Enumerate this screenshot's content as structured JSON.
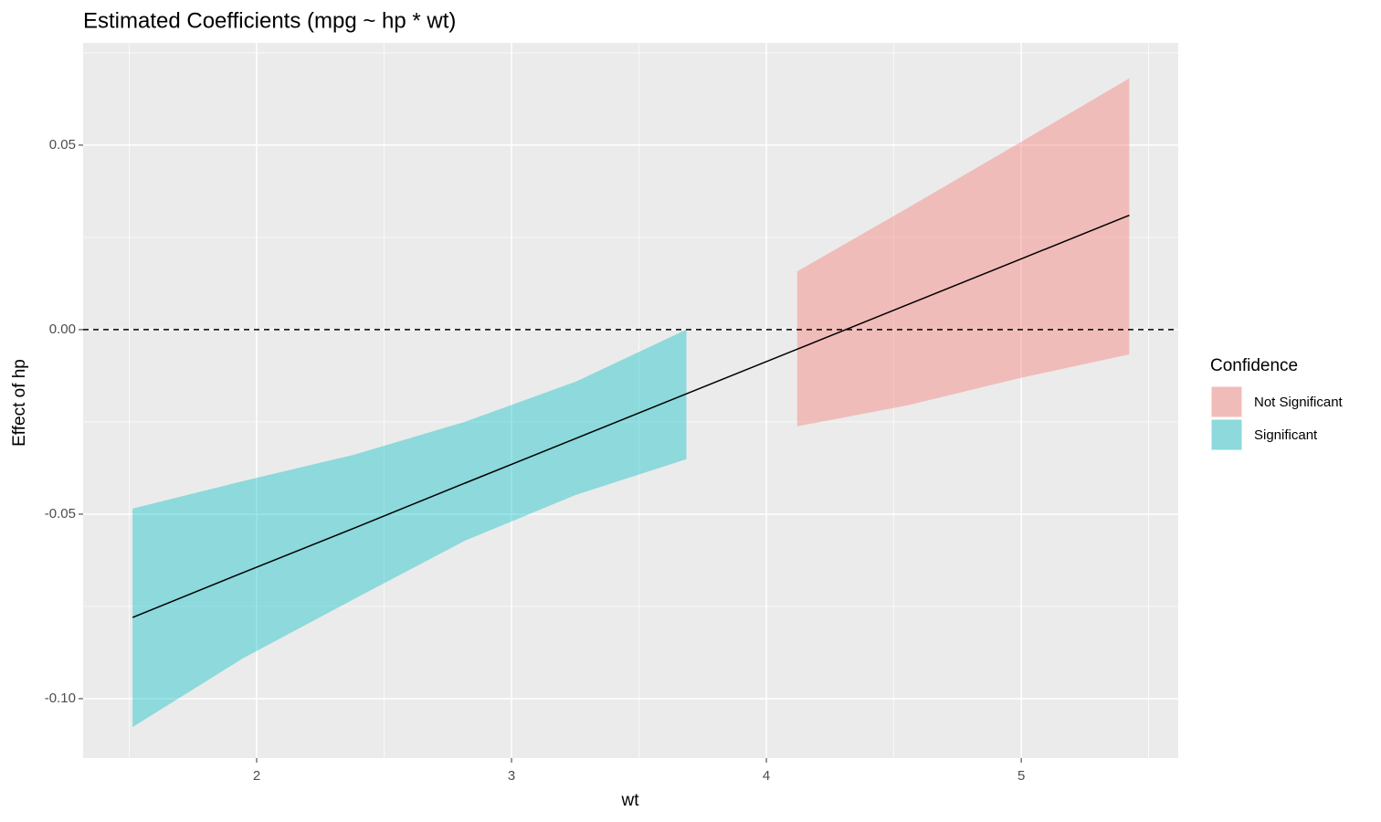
{
  "chart_data": {
    "type": "ribbon",
    "title": "Estimated Coefficients (mpg ~ hp * wt)",
    "x_label": "wt",
    "y_label": "Effect of hp",
    "x": [
      1.513,
      1.948,
      2.382,
      2.817,
      3.252,
      3.686,
      4.121,
      4.555,
      4.99,
      5.424
    ],
    "values": [
      -0.078,
      -0.0658,
      -0.0538,
      -0.0416,
      -0.0295,
      -0.0174,
      -0.0053,
      0.0068,
      0.0189,
      0.031
    ],
    "line_color": "#000000",
    "series": [
      {
        "name": "Not Significant",
        "color": "#F8766D",
        "lower": [
          null,
          null,
          null,
          null,
          null,
          null,
          -0.0262,
          -0.0205,
          -0.0132,
          -0.0067
        ],
        "upper": [
          null,
          null,
          null,
          null,
          null,
          null,
          0.0158,
          0.033,
          0.0505,
          0.0681
        ]
      },
      {
        "name": "Significant",
        "color": "#00BFC4",
        "lower": [
          -0.1077,
          -0.089,
          -0.073,
          -0.0572,
          -0.0448,
          -0.0351,
          null,
          null,
          null,
          null
        ],
        "upper": [
          -0.0485,
          -0.041,
          -0.0339,
          -0.025,
          -0.0141,
          0.0,
          null,
          null,
          null,
          null
        ]
      }
    ],
    "legend_title": "Confidence",
    "legend_position": "right",
    "fill_opacity": 0.4,
    "hline": 0,
    "xlim": [
      1.319,
      5.616
    ],
    "ylim": [
      -0.1161,
      0.0777
    ],
    "xticks": [
      2,
      3,
      4,
      5
    ],
    "yticks": [
      {
        "value": 0.05,
        "label": "0.05"
      },
      {
        "value": 0,
        "label": "0.00"
      },
      {
        "value": -0.05,
        "label": "-0.05"
      },
      {
        "value": -0.1,
        "label": "-0.10"
      }
    ],
    "minor_xticks": [
      1.5,
      2.5,
      3.5,
      4.5,
      5.5
    ],
    "minor_yticks": [
      0.075,
      0.025,
      -0.025,
      -0.075
    ],
    "grid": true
  }
}
